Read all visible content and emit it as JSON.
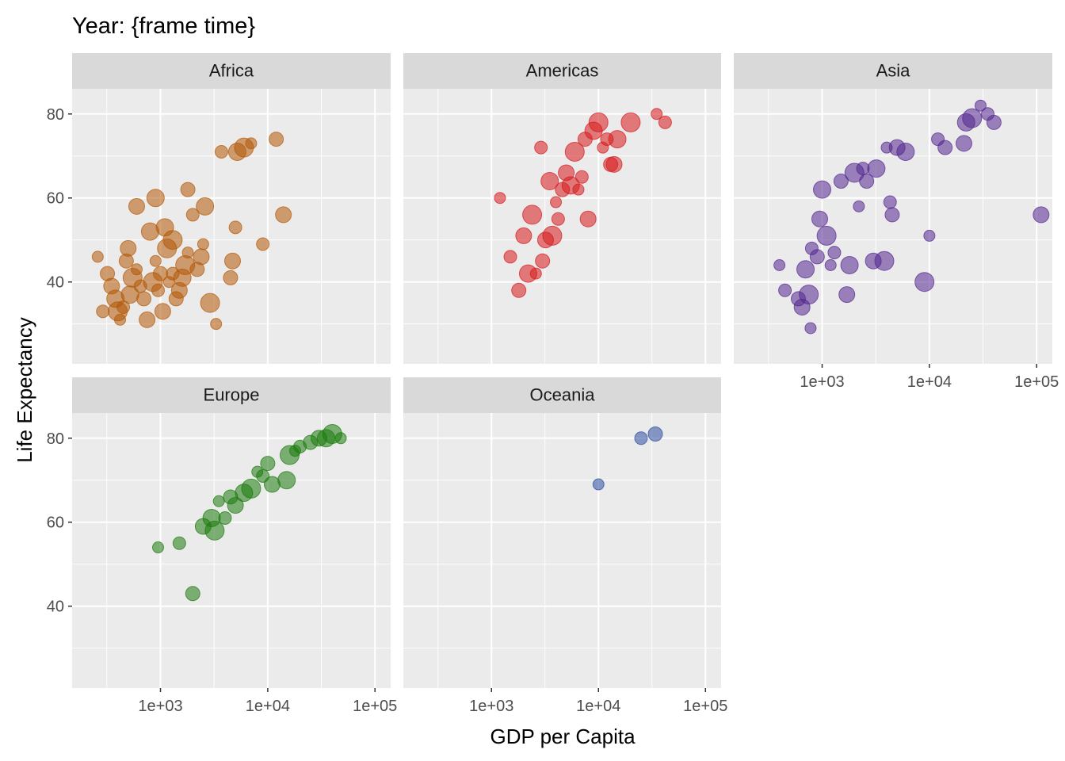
{
  "title": "Year: {frame time}",
  "chart_data": {
    "type": "scatter",
    "title": "Year: {frame time}",
    "xlabel": "GDP per Capita",
    "ylabel": "Life Expectancy",
    "x_scale": "log10",
    "xlim": [
      150,
      140000
    ],
    "ylim": [
      20.5,
      86
    ],
    "x_ticks": [
      1000,
      10000,
      100000
    ],
    "x_tick_labels": [
      "1e+03",
      "1e+04",
      "1e+05"
    ],
    "y_ticks": [
      40,
      60,
      80
    ],
    "y_tick_labels": [
      "40",
      "60",
      "80"
    ],
    "grid": true,
    "legend": "none",
    "facets": [
      {
        "name": "Africa",
        "color": "#b35806",
        "points": [
          [
            260,
            46
          ],
          [
            290,
            33
          ],
          [
            320,
            42
          ],
          [
            350,
            39
          ],
          [
            380,
            36
          ],
          [
            400,
            33
          ],
          [
            420,
            31
          ],
          [
            450,
            34
          ],
          [
            480,
            45
          ],
          [
            500,
            48
          ],
          [
            520,
            37
          ],
          [
            550,
            41
          ],
          [
            600,
            43
          ],
          [
            650,
            39
          ],
          [
            700,
            36
          ],
          [
            750,
            31
          ],
          [
            800,
            52
          ],
          [
            850,
            40
          ],
          [
            900,
            45
          ],
          [
            950,
            38
          ],
          [
            1000,
            42
          ],
          [
            1050,
            33
          ],
          [
            1100,
            53
          ],
          [
            1150,
            48
          ],
          [
            1200,
            40
          ],
          [
            1300,
            42
          ],
          [
            1400,
            36
          ],
          [
            1500,
            38
          ],
          [
            1600,
            41
          ],
          [
            1700,
            44
          ],
          [
            1800,
            47
          ],
          [
            2000,
            56
          ],
          [
            2200,
            43
          ],
          [
            2400,
            46
          ],
          [
            2600,
            58
          ],
          [
            2900,
            35
          ],
          [
            3300,
            30
          ],
          [
            3700,
            71
          ],
          [
            4500,
            41
          ],
          [
            4700,
            45
          ],
          [
            5200,
            71
          ],
          [
            6000,
            72
          ],
          [
            7000,
            73
          ],
          [
            9000,
            49
          ],
          [
            12000,
            74
          ],
          [
            600,
            58
          ],
          [
            900,
            60
          ],
          [
            1300,
            50
          ],
          [
            2500,
            49
          ],
          [
            5000,
            53
          ],
          [
            1800,
            62
          ],
          [
            14000,
            56
          ]
        ]
      },
      {
        "name": "Americas",
        "color": "#d7191c",
        "points": [
          [
            1200,
            60
          ],
          [
            1500,
            46
          ],
          [
            1800,
            38
          ],
          [
            2000,
            51
          ],
          [
            2200,
            42
          ],
          [
            2400,
            56
          ],
          [
            2600,
            42
          ],
          [
            2900,
            72
          ],
          [
            3000,
            45
          ],
          [
            3200,
            50
          ],
          [
            3500,
            64
          ],
          [
            3700,
            51
          ],
          [
            4000,
            59
          ],
          [
            4200,
            55
          ],
          [
            4600,
            62
          ],
          [
            5000,
            66
          ],
          [
            5500,
            63
          ],
          [
            6000,
            71
          ],
          [
            6500,
            62
          ],
          [
            7000,
            65
          ],
          [
            7500,
            74
          ],
          [
            8000,
            55
          ],
          [
            9000,
            76
          ],
          [
            10000,
            78
          ],
          [
            11000,
            72
          ],
          [
            12000,
            74
          ],
          [
            13000,
            68
          ],
          [
            14000,
            68
          ],
          [
            15000,
            74
          ],
          [
            20000,
            78
          ],
          [
            35000,
            80
          ],
          [
            42000,
            78
          ]
        ]
      },
      {
        "name": "Asia",
        "color": "#54278f",
        "points": [
          [
            400,
            44
          ],
          [
            450,
            38
          ],
          [
            600,
            36
          ],
          [
            650,
            34
          ],
          [
            700,
            43
          ],
          [
            750,
            37
          ],
          [
            780,
            29
          ],
          [
            800,
            48
          ],
          [
            900,
            46
          ],
          [
            950,
            55
          ],
          [
            1000,
            62
          ],
          [
            1100,
            51
          ],
          [
            1200,
            44
          ],
          [
            1300,
            47
          ],
          [
            1500,
            64
          ],
          [
            1700,
            37
          ],
          [
            1800,
            44
          ],
          [
            2000,
            66
          ],
          [
            2200,
            58
          ],
          [
            2400,
            67
          ],
          [
            2600,
            64
          ],
          [
            3000,
            45
          ],
          [
            3200,
            67
          ],
          [
            3800,
            45
          ],
          [
            4000,
            72
          ],
          [
            4300,
            59
          ],
          [
            4500,
            56
          ],
          [
            5000,
            72
          ],
          [
            6000,
            71
          ],
          [
            9000,
            40
          ],
          [
            10000,
            51
          ],
          [
            12000,
            74
          ],
          [
            14000,
            72
          ],
          [
            21000,
            73
          ],
          [
            22000,
            78
          ],
          [
            25000,
            79
          ],
          [
            30000,
            82
          ],
          [
            35000,
            80
          ],
          [
            40000,
            78
          ],
          [
            110000,
            56
          ]
        ]
      },
      {
        "name": "Europe",
        "color": "#1b7a0c",
        "points": [
          [
            950,
            54
          ],
          [
            1500,
            55
          ],
          [
            2000,
            43
          ],
          [
            2500,
            59
          ],
          [
            3000,
            61
          ],
          [
            3200,
            58
          ],
          [
            3500,
            65
          ],
          [
            4000,
            61
          ],
          [
            4500,
            66
          ],
          [
            5000,
            64
          ],
          [
            6000,
            67
          ],
          [
            7000,
            68
          ],
          [
            8000,
            72
          ],
          [
            9000,
            71
          ],
          [
            10000,
            74
          ],
          [
            11000,
            69
          ],
          [
            15000,
            70
          ],
          [
            16000,
            76
          ],
          [
            18000,
            77
          ],
          [
            20000,
            78
          ],
          [
            25000,
            79
          ],
          [
            30000,
            80
          ],
          [
            35000,
            80
          ],
          [
            40000,
            81
          ],
          [
            48000,
            80
          ]
        ]
      },
      {
        "name": "Oceania",
        "color": "#2c4c9e",
        "points": [
          [
            10000,
            69
          ],
          [
            25000,
            80
          ],
          [
            34000,
            81
          ]
        ]
      }
    ]
  }
}
